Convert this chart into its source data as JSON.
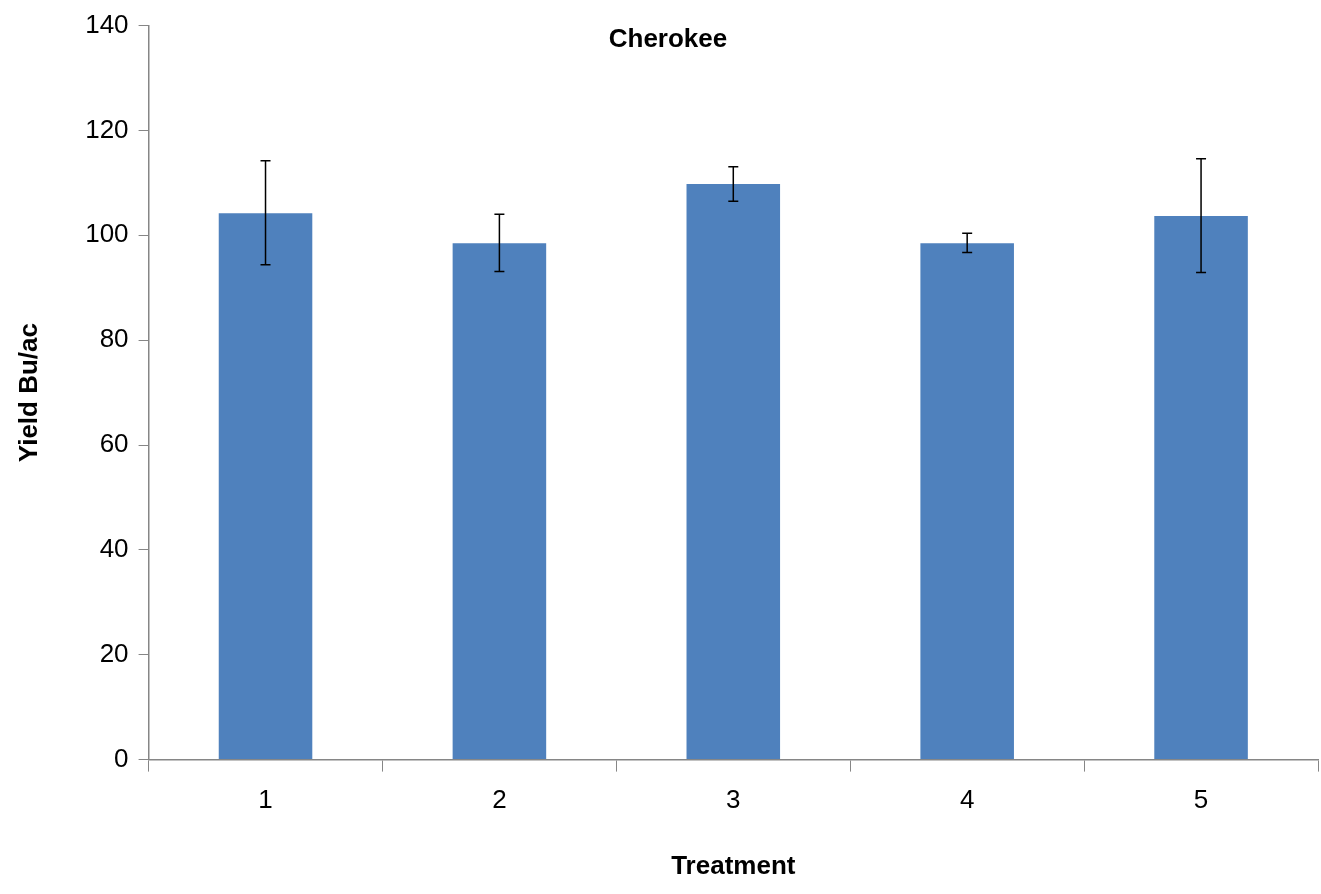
{
  "chart_data": {
    "type": "bar",
    "title": "Cherokee",
    "xlabel": "Treatment",
    "ylabel": "Yield Bu/ac",
    "categories": [
      "1",
      "2",
      "3",
      "4",
      "5"
    ],
    "values": [
      104.2,
      98.5,
      109.8,
      98.5,
      103.7
    ],
    "errors": [
      [
        94.4,
        114.2
      ],
      [
        93.1,
        104.0
      ],
      [
        106.5,
        113.1
      ],
      [
        96.7,
        100.4
      ],
      [
        92.9,
        114.6
      ]
    ],
    "color": "#4f81bd",
    "ylim": [
      0,
      140
    ],
    "yticks": [
      0,
      20,
      40,
      60,
      80,
      100,
      120,
      140
    ],
    "grid": false,
    "legend": false
  }
}
